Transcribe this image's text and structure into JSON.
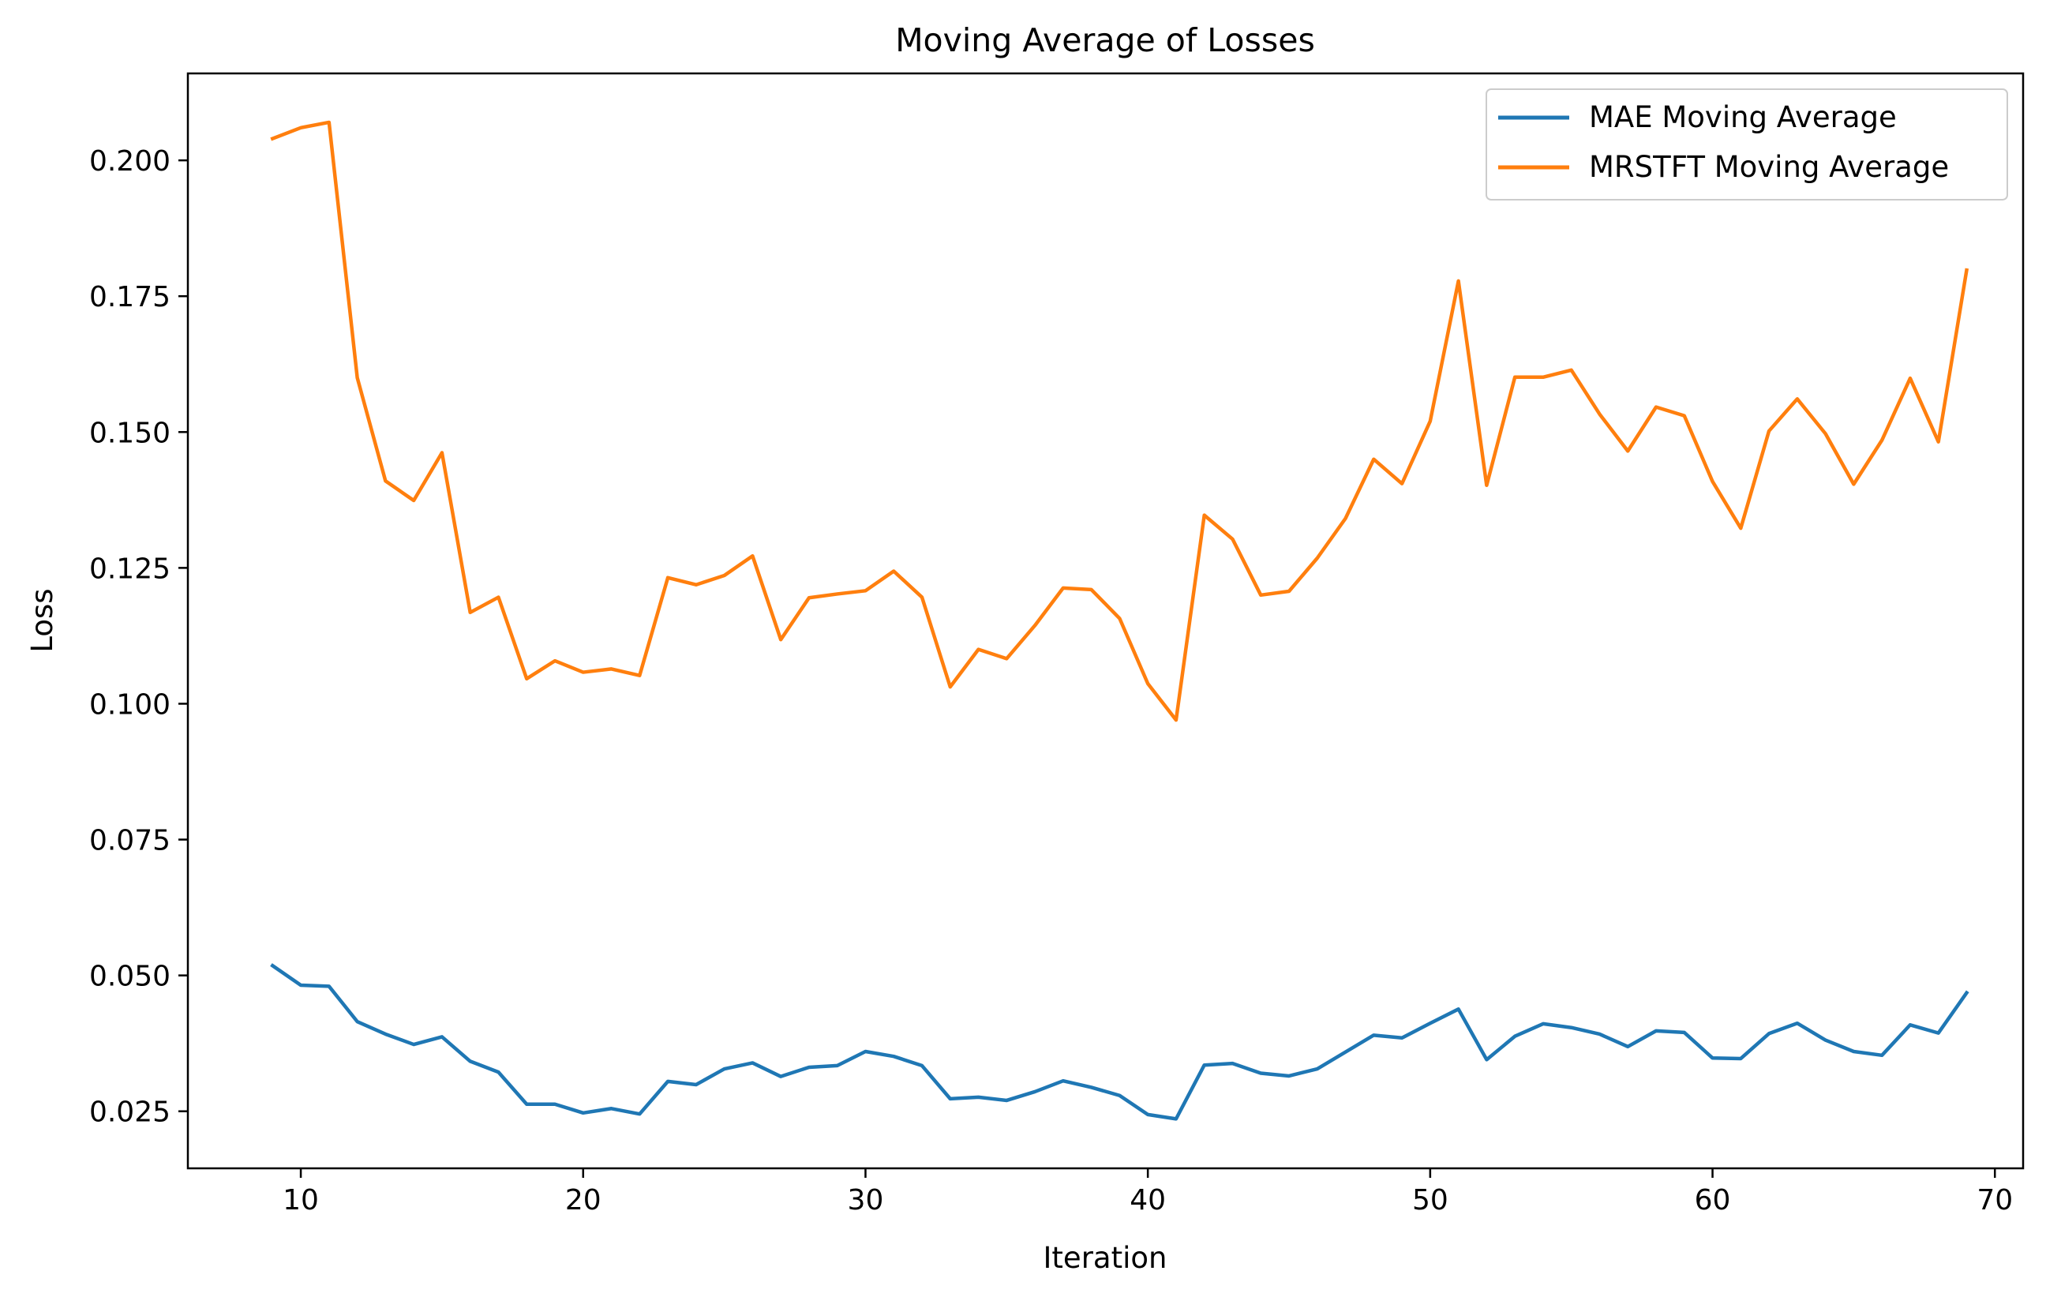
{
  "chart_data": {
    "type": "line",
    "title": "Moving Average of Losses",
    "xlabel": "Iteration",
    "ylabel": "Loss",
    "xlim": [
      6,
      71
    ],
    "ylim": [
      0.0145,
      0.216
    ],
    "xticks": [
      10,
      20,
      30,
      40,
      50,
      60,
      70
    ],
    "yticks": [
      0.025,
      0.05,
      0.075,
      0.1,
      0.125,
      0.15,
      0.175,
      0.2
    ],
    "ytick_labels": [
      "0.025",
      "0.050",
      "0.075",
      "0.100",
      "0.125",
      "0.150",
      "0.175",
      "0.200"
    ],
    "grid": false,
    "legend_position": "top-right",
    "x": [
      9,
      10,
      11,
      12,
      13,
      14,
      15,
      16,
      17,
      18,
      19,
      20,
      21,
      22,
      23,
      24,
      25,
      26,
      27,
      28,
      29,
      30,
      31,
      32,
      33,
      34,
      35,
      36,
      37,
      38,
      39,
      40,
      41,
      42,
      43,
      44,
      45,
      46,
      47,
      48,
      49,
      50,
      51,
      52,
      53,
      54,
      55,
      56,
      57,
      58,
      59,
      60,
      61,
      62,
      63,
      64,
      65,
      66,
      67,
      68,
      69
    ],
    "series": [
      {
        "name": "MAE Moving Average",
        "color": "#1f77b4",
        "values": [
          0.0518,
          0.0482,
          0.048,
          0.0415,
          0.0392,
          0.0373,
          0.0387,
          0.0342,
          0.0322,
          0.0263,
          0.0263,
          0.0247,
          0.0255,
          0.0245,
          0.0305,
          0.0299,
          0.0328,
          0.0339,
          0.0314,
          0.0331,
          0.0334,
          0.036,
          0.0351,
          0.0334,
          0.0273,
          0.0276,
          0.027,
          0.0286,
          0.0306,
          0.0294,
          0.0279,
          0.0244,
          0.0236,
          0.0335,
          0.0338,
          0.032,
          0.0315,
          0.0328,
          0.0359,
          0.039,
          0.0385,
          0.0412,
          0.0438,
          0.0345,
          0.0388,
          0.0411,
          0.0404,
          0.0392,
          0.0369,
          0.0398,
          0.0395,
          0.0348,
          0.0347,
          0.0393,
          0.0412,
          0.0381,
          0.036,
          0.0353,
          0.0409,
          0.0394,
          0.0468
        ]
      },
      {
        "name": "MRSTFT Moving Average",
        "color": "#ff7f0e",
        "values": [
          0.204,
          0.206,
          0.207,
          0.16,
          0.141,
          0.1374,
          0.1462,
          0.1168,
          0.1196,
          0.1046,
          0.1079,
          0.1058,
          0.1064,
          0.1052,
          0.1232,
          0.1219,
          0.1236,
          0.1272,
          0.1118,
          0.1195,
          0.1202,
          0.1208,
          0.1244,
          0.1196,
          0.1031,
          0.11,
          0.1083,
          0.1144,
          0.1213,
          0.121,
          0.1157,
          0.1037,
          0.097,
          0.1347,
          0.1303,
          0.12,
          0.1207,
          0.1268,
          0.1341,
          0.145,
          0.1405,
          0.152,
          0.1778,
          0.1402,
          0.1601,
          0.1601,
          0.1614,
          0.1533,
          0.1465,
          0.1546,
          0.153,
          0.1409,
          0.1323,
          0.1502,
          0.1561,
          0.1497,
          0.1404,
          0.1485,
          0.1599,
          0.1482,
          0.1798
        ]
      }
    ]
  }
}
